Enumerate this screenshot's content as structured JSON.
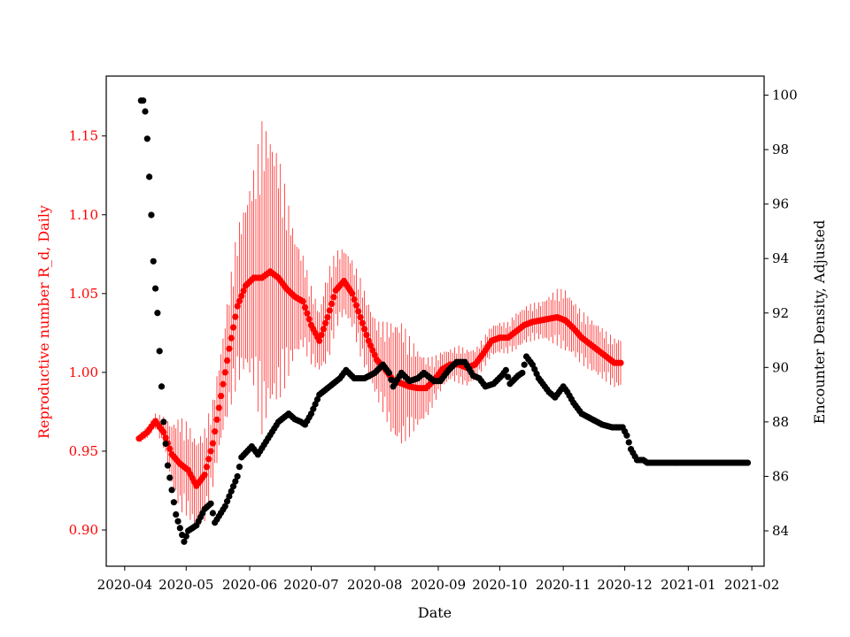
{
  "chart_data": {
    "type": "scatter",
    "xlabel": "Date",
    "ylabel_left": "Reproductive number R_d, Daily",
    "ylabel_right": "Encounter Density, Adjusted",
    "x_ticks": [
      "2020-04",
      "2020-05",
      "2020-06",
      "2020-07",
      "2020-08",
      "2020-09",
      "2020-10",
      "2020-11",
      "2020-12",
      "2021-01",
      "2021-02"
    ],
    "xlim": [
      "2020-03-23",
      "2021-02-07"
    ],
    "ylim_left": [
      0.877,
      1.188
    ],
    "ylim_right": [
      82.7,
      100.7
    ],
    "y_ticks_left": [
      0.9,
      0.95,
      1.0,
      1.05,
      1.1,
      1.15
    ],
    "y_ticks_right": [
      84,
      86,
      88,
      90,
      92,
      94,
      96,
      98,
      100
    ],
    "left_color": "#ff0000",
    "right_color": "#000000",
    "grid": false,
    "series": [
      {
        "axis": "left",
        "color": "#ff0000",
        "marker": "dot-with-errorbar",
        "x_start": "2020-04-08",
        "x_end": "2020-11-29",
        "knots": [
          [
            "2020-04-08",
            0.958,
            0.003
          ],
          [
            "2020-04-12",
            0.962,
            0.004
          ],
          [
            "2020-04-16",
            0.969,
            0.005
          ],
          [
            "2020-04-20",
            0.962,
            0.01
          ],
          [
            "2020-04-24",
            0.948,
            0.02
          ],
          [
            "2020-04-28",
            0.942,
            0.03
          ],
          [
            "2020-05-02",
            0.938,
            0.03
          ],
          [
            "2020-05-06",
            0.928,
            0.03
          ],
          [
            "2020-05-10",
            0.935,
            0.03
          ],
          [
            "2020-05-14",
            0.955,
            0.028
          ],
          [
            "2020-05-18",
            0.985,
            0.03
          ],
          [
            "2020-05-22",
            1.015,
            0.04
          ],
          [
            "2020-05-26",
            1.042,
            0.05
          ],
          [
            "2020-05-30",
            1.055,
            0.055
          ],
          [
            "2020-06-03",
            1.06,
            0.07
          ],
          [
            "2020-06-07",
            1.06,
            0.1
          ],
          [
            "2020-06-11",
            1.064,
            0.09
          ],
          [
            "2020-06-15",
            1.06,
            0.08
          ],
          [
            "2020-06-19",
            1.053,
            0.06
          ],
          [
            "2020-06-23",
            1.048,
            0.04
          ],
          [
            "2020-06-27",
            1.045,
            0.03
          ],
          [
            "2020-07-01",
            1.03,
            0.025
          ],
          [
            "2020-07-05",
            1.02,
            0.02
          ],
          [
            "2020-07-09",
            1.035,
            0.03
          ],
          [
            "2020-07-13",
            1.052,
            0.025
          ],
          [
            "2020-07-17",
            1.058,
            0.022
          ],
          [
            "2020-07-21",
            1.05,
            0.022
          ],
          [
            "2020-07-25",
            1.035,
            0.025
          ],
          [
            "2020-07-29",
            1.02,
            0.025
          ],
          [
            "2020-08-02",
            1.008,
            0.025
          ],
          [
            "2020-08-06",
            1.002,
            0.03
          ],
          [
            "2020-08-10",
            0.995,
            0.038
          ],
          [
            "2020-08-14",
            0.993,
            0.04
          ],
          [
            "2020-08-18",
            0.991,
            0.032
          ],
          [
            "2020-08-22",
            0.99,
            0.025
          ],
          [
            "2020-08-26",
            0.99,
            0.02
          ],
          [
            "2020-08-30",
            0.995,
            0.015
          ],
          [
            "2020-09-03",
            1.002,
            0.012
          ],
          [
            "2020-09-07",
            1.005,
            0.01
          ],
          [
            "2020-09-11",
            1.005,
            0.012
          ],
          [
            "2020-09-15",
            1.003,
            0.012
          ],
          [
            "2020-09-19",
            1.005,
            0.01
          ],
          [
            "2020-09-23",
            1.012,
            0.01
          ],
          [
            "2020-09-27",
            1.02,
            0.01
          ],
          [
            "2020-10-01",
            1.022,
            0.01
          ],
          [
            "2020-10-05",
            1.022,
            0.01
          ],
          [
            "2020-10-09",
            1.026,
            0.012
          ],
          [
            "2020-10-13",
            1.03,
            0.012
          ],
          [
            "2020-10-17",
            1.032,
            0.012
          ],
          [
            "2020-10-21",
            1.033,
            0.012
          ],
          [
            "2020-10-25",
            1.034,
            0.015
          ],
          [
            "2020-10-29",
            1.035,
            0.018
          ],
          [
            "2020-11-02",
            1.033,
            0.02
          ],
          [
            "2020-11-06",
            1.028,
            0.018
          ],
          [
            "2020-11-10",
            1.022,
            0.017
          ],
          [
            "2020-11-14",
            1.018,
            0.017
          ],
          [
            "2020-11-18",
            1.014,
            0.017
          ],
          [
            "2020-11-22",
            1.01,
            0.016
          ],
          [
            "2020-11-26",
            1.006,
            0.016
          ],
          [
            "2020-11-29",
            1.006,
            0.016
          ]
        ]
      },
      {
        "axis": "right",
        "color": "#000000",
        "marker": "dot",
        "x_start": "2020-04-09",
        "x_end": "2021-01-30",
        "knots": [
          [
            "2020-04-09",
            99.8
          ],
          [
            "2020-04-10",
            99.8
          ],
          [
            "2020-04-11",
            99.4
          ],
          [
            "2020-04-12",
            98.4
          ],
          [
            "2020-04-13",
            97.0
          ],
          [
            "2020-04-14",
            95.6
          ],
          [
            "2020-04-15",
            93.9
          ],
          [
            "2020-04-16",
            92.9
          ],
          [
            "2020-04-17",
            92.0
          ],
          [
            "2020-04-18",
            90.6
          ],
          [
            "2020-04-19",
            89.3
          ],
          [
            "2020-04-20",
            88.0
          ],
          [
            "2020-04-21",
            87.2
          ],
          [
            "2020-04-22",
            86.4
          ],
          [
            "2020-04-24",
            85.5
          ],
          [
            "2020-04-26",
            84.6
          ],
          [
            "2020-04-28",
            84.1
          ],
          [
            "2020-04-30",
            83.6
          ],
          [
            "2020-05-02",
            84.0
          ],
          [
            "2020-05-06",
            84.2
          ],
          [
            "2020-05-08",
            84.5
          ],
          [
            "2020-05-10",
            84.8
          ],
          [
            "2020-05-13",
            85.0
          ],
          [
            "2020-05-15",
            84.3
          ],
          [
            "2020-05-20",
            84.9
          ],
          [
            "2020-05-26",
            86.0
          ],
          [
            "2020-05-28",
            86.7
          ],
          [
            "2020-06-02",
            87.1
          ],
          [
            "2020-06-05",
            86.8
          ],
          [
            "2020-06-10",
            87.4
          ],
          [
            "2020-06-15",
            88.0
          ],
          [
            "2020-06-20",
            88.3
          ],
          [
            "2020-06-23",
            88.1
          ],
          [
            "2020-06-26",
            88.0
          ],
          [
            "2020-06-28",
            87.9
          ],
          [
            "2020-07-01",
            88.3
          ],
          [
            "2020-07-05",
            89.0
          ],
          [
            "2020-07-10",
            89.3
          ],
          [
            "2020-07-15",
            89.6
          ],
          [
            "2020-07-18",
            89.9
          ],
          [
            "2020-07-22",
            89.6
          ],
          [
            "2020-07-27",
            89.6
          ],
          [
            "2020-08-01",
            89.8
          ],
          [
            "2020-08-05",
            90.1
          ],
          [
            "2020-08-08",
            89.8
          ],
          [
            "2020-08-10",
            89.3
          ],
          [
            "2020-08-14",
            89.8
          ],
          [
            "2020-08-18",
            89.5
          ],
          [
            "2020-08-22",
            89.6
          ],
          [
            "2020-08-25",
            89.8
          ],
          [
            "2020-08-30",
            89.5
          ],
          [
            "2020-09-02",
            89.5
          ],
          [
            "2020-09-06",
            89.9
          ],
          [
            "2020-09-10",
            90.2
          ],
          [
            "2020-09-14",
            90.2
          ],
          [
            "2020-09-18",
            89.7
          ],
          [
            "2020-09-21",
            89.6
          ],
          [
            "2020-09-24",
            89.3
          ],
          [
            "2020-09-28",
            89.4
          ],
          [
            "2020-10-02",
            89.7
          ],
          [
            "2020-10-04",
            89.9
          ],
          [
            "2020-10-06",
            89.4
          ],
          [
            "2020-10-10",
            89.7
          ],
          [
            "2020-10-12",
            89.8
          ],
          [
            "2020-10-14",
            90.4
          ],
          [
            "2020-10-17",
            90.1
          ],
          [
            "2020-10-20",
            89.6
          ],
          [
            "2020-10-25",
            89.1
          ],
          [
            "2020-10-28",
            88.9
          ],
          [
            "2020-11-01",
            89.3
          ],
          [
            "2020-11-03",
            89.1
          ],
          [
            "2020-11-06",
            88.7
          ],
          [
            "2020-11-10",
            88.3
          ],
          [
            "2020-11-15",
            88.1
          ],
          [
            "2020-11-20",
            87.9
          ],
          [
            "2020-11-25",
            87.8
          ],
          [
            "2020-11-30",
            87.8
          ],
          [
            "2020-12-02",
            87.5
          ],
          [
            "2020-12-04",
            87.0
          ],
          [
            "2020-12-07",
            86.6
          ],
          [
            "2020-12-10",
            86.6
          ],
          [
            "2020-12-12",
            86.5
          ],
          [
            "2020-12-15",
            86.5
          ],
          [
            "2021-01-30",
            86.5
          ]
        ]
      }
    ]
  }
}
